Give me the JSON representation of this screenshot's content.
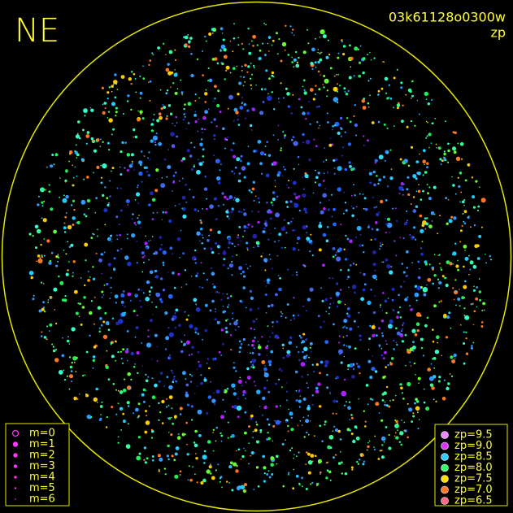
{
  "header": {
    "direction": "NE",
    "frame_id": "03k61128o0300w",
    "mode": "zp"
  },
  "legend_magnitude": [
    "m=0",
    "m=1",
    "m=2",
    "m=3",
    "m=4",
    "m=5",
    "m=6"
  ],
  "legend_zp": [
    "zp=9.5",
    "zp=9.0",
    "zp=8.5",
    "zp=8.0",
    "zp=7.5",
    "zp=7.0",
    "zp=6.5"
  ]
}
